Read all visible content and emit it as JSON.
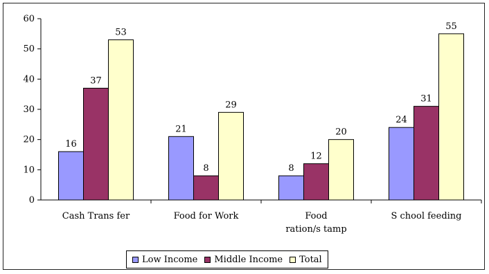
{
  "chart_data": {
    "type": "bar",
    "categories": [
      "Cash Trans fer",
      "Food for Work",
      "Food ration/s tamp",
      "S chool feeding"
    ],
    "category_lines": [
      [
        "Cash Trans fer"
      ],
      [
        "Food for Work"
      ],
      [
        "Food",
        "ration/s tamp"
      ],
      [
        "S chool feeding"
      ]
    ],
    "series": [
      {
        "name": "Low Income",
        "values": [
          16,
          21,
          8,
          24
        ],
        "color": "#9999FF"
      },
      {
        "name": "Middle Income",
        "values": [
          37,
          8,
          12,
          31
        ],
        "color": "#993366"
      },
      {
        "name": "Total",
        "values": [
          53,
          29,
          20,
          55
        ],
        "color": "#FFFFCC"
      }
    ],
    "ylim": [
      0,
      60
    ],
    "yticks": [
      "0",
      "10",
      "20",
      "30",
      "40",
      "50",
      "60"
    ],
    "data_labels": [
      [
        "16",
        "21",
        "8",
        "24"
      ],
      [
        "37",
        "8",
        "12",
        "31"
      ],
      [
        "53",
        "29",
        "20",
        "55"
      ]
    ],
    "grid": false,
    "legend": "bottom",
    "title": "",
    "xlabel": "",
    "ylabel": ""
  }
}
